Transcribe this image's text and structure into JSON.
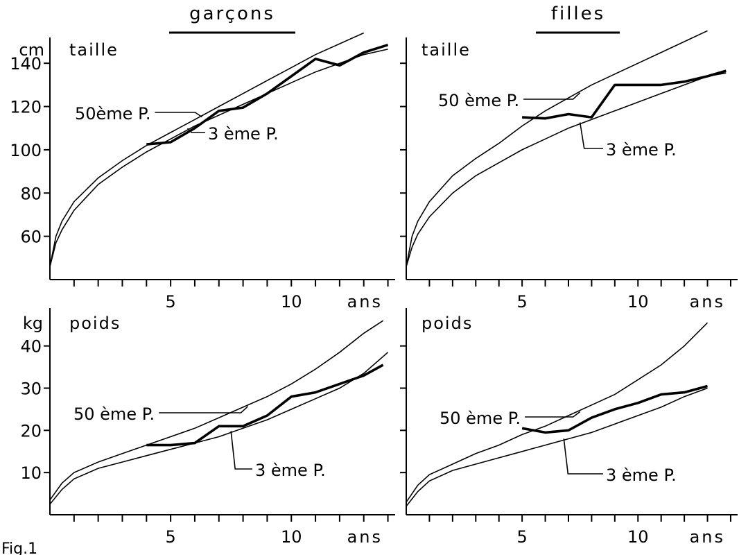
{
  "headers": {
    "boys": "garçons",
    "girls": "filles"
  },
  "fig_caption": "Fig.1",
  "chart_data": [
    {
      "type": "line",
      "id": "boys-height",
      "panel_label": "taille",
      "ylabel": "cm",
      "xlabel": "ans",
      "xlim": [
        0,
        14.3
      ],
      "ylim": [
        40,
        150
      ],
      "xticks": [
        1,
        2,
        3,
        4,
        5,
        6,
        7,
        8,
        9,
        10,
        11,
        12,
        13,
        14
      ],
      "xtick_labels": [
        {
          "x": 5,
          "label": "5"
        },
        {
          "x": 10,
          "label": "10"
        }
      ],
      "yticks": [
        60,
        80,
        100,
        120,
        140
      ],
      "ytick_labels": [
        "60",
        "80",
        "100",
        "120",
        "140"
      ],
      "series": [
        {
          "name": "50ème P.",
          "role": "p50",
          "x": [
            0,
            0.25,
            0.5,
            1,
            2,
            3,
            4,
            5,
            6,
            7,
            8,
            9,
            10,
            11,
            12,
            13
          ],
          "y": [
            46,
            60,
            67,
            76,
            87,
            95,
            102,
            108,
            114,
            120,
            126,
            132,
            138,
            144,
            149,
            154
          ]
        },
        {
          "name": "3 ème P.",
          "role": "p3",
          "x": [
            0,
            0.25,
            0.5,
            1,
            2,
            3,
            4,
            5,
            6,
            7,
            8,
            9,
            10,
            11,
            12,
            13,
            14
          ],
          "y": [
            46,
            57,
            63,
            72,
            84,
            92,
            99,
            105,
            111,
            116,
            121,
            126,
            131,
            136,
            140,
            144,
            146.5
          ]
        },
        {
          "role": "child",
          "x": [
            4,
            5,
            6,
            7,
            8,
            9,
            10,
            11,
            12,
            13,
            14
          ],
          "y": [
            102.5,
            103.5,
            110,
            118,
            119.5,
            126,
            134,
            142,
            139,
            145,
            148.5
          ]
        }
      ],
      "annotations": [
        {
          "text": "50ème P.",
          "target": "p50"
        },
        {
          "text": "3 ème P.",
          "target": "p3"
        }
      ]
    },
    {
      "type": "line",
      "id": "girls-height",
      "panel_label": "taille",
      "ylabel": "",
      "xlabel": "ans",
      "xlim": [
        0,
        14.3
      ],
      "ylim": [
        40,
        150
      ],
      "xticks": [
        1,
        2,
        3,
        4,
        5,
        6,
        7,
        8,
        9,
        10,
        11,
        12,
        13,
        14
      ],
      "xtick_labels": [
        {
          "x": 5,
          "label": "5"
        },
        {
          "x": 10,
          "label": "10"
        }
      ],
      "yticks": [
        60,
        80,
        100,
        120,
        140
      ],
      "ytick_labels": [],
      "series": [
        {
          "name": "50ème P.",
          "role": "p50",
          "x": [
            0,
            0.25,
            0.5,
            1,
            2,
            3,
            4,
            5,
            6,
            7,
            8,
            9,
            10,
            11,
            12,
            13
          ],
          "y": [
            46,
            60,
            67,
            76,
            88,
            96,
            103,
            111,
            118,
            124,
            130,
            135,
            140,
            145,
            150,
            155
          ]
        },
        {
          "name": "3 ème P.",
          "role": "p3",
          "x": [
            0,
            0.25,
            0.5,
            1,
            2,
            3,
            4,
            5,
            6,
            7,
            8,
            9,
            10,
            11,
            12,
            13,
            13.8
          ],
          "y": [
            46,
            55,
            61,
            69,
            80,
            88,
            94,
            100,
            105,
            110,
            114,
            118,
            122,
            126,
            130,
            134,
            135.5
          ]
        },
        {
          "role": "child",
          "x": [
            5,
            6,
            7,
            8,
            9,
            10,
            11,
            12,
            13,
            13.8
          ],
          "y": [
            115,
            114.5,
            116.5,
            115,
            130,
            130,
            130,
            131.5,
            134,
            136.5
          ]
        }
      ],
      "annotations": [
        {
          "text": "50 ème P.",
          "target": "p50"
        },
        {
          "text": "3 ème P.",
          "target": "p3"
        }
      ]
    },
    {
      "type": "line",
      "id": "boys-weight",
      "panel_label": "poids",
      "ylabel": "kg",
      "xlabel": "ans",
      "xlim": [
        0,
        14.3
      ],
      "ylim": [
        0,
        48
      ],
      "xticks": [
        1,
        2,
        3,
        4,
        5,
        6,
        7,
        8,
        9,
        10,
        11,
        12,
        13,
        14
      ],
      "xtick_labels": [
        {
          "x": 5,
          "label": "5"
        },
        {
          "x": 10,
          "label": "10"
        }
      ],
      "yticks": [
        10,
        20,
        30,
        40
      ],
      "ytick_labels": [
        "10",
        "20",
        "30",
        "40"
      ],
      "series": [
        {
          "name": "50ème P.",
          "role": "p50",
          "x": [
            0,
            0.5,
            1,
            2,
            3,
            4,
            5,
            6,
            7,
            8,
            9,
            10,
            11,
            12,
            13,
            13.8
          ],
          "y": [
            3.5,
            7.5,
            10,
            12.5,
            14.5,
            16.5,
            18.5,
            20.5,
            23,
            25.5,
            28,
            31,
            34.5,
            38.5,
            43,
            46
          ]
        },
        {
          "name": "3 ème P.",
          "role": "p3",
          "x": [
            0,
            0.5,
            1,
            2,
            3,
            4,
            5,
            6,
            7,
            8,
            9,
            10,
            11,
            12,
            13,
            14
          ],
          "y": [
            2.5,
            6,
            8.5,
            11,
            12.5,
            14,
            15.5,
            17,
            18.5,
            20.5,
            22.5,
            25,
            27.5,
            30,
            33.5,
            38.5
          ]
        },
        {
          "role": "child",
          "x": [
            4,
            5,
            6,
            7,
            8,
            9,
            10,
            11,
            12,
            13,
            13.8
          ],
          "y": [
            16.5,
            16.5,
            17,
            21,
            21,
            23.5,
            28,
            29,
            31,
            33,
            35.5
          ]
        }
      ],
      "annotations": [
        {
          "text": "50 ème P.",
          "target": "p50"
        },
        {
          "text": "3 ème P.",
          "target": "p3"
        }
      ]
    },
    {
      "type": "line",
      "id": "girls-weight",
      "panel_label": "poids",
      "ylabel": "",
      "xlabel": "ans",
      "xlim": [
        0,
        14.3
      ],
      "ylim": [
        0,
        48
      ],
      "xticks": [
        1,
        2,
        3,
        4,
        5,
        6,
        7,
        8,
        9,
        10,
        11,
        12,
        13,
        14
      ],
      "xtick_labels": [
        {
          "x": 5,
          "label": "5"
        },
        {
          "x": 10,
          "label": "10"
        }
      ],
      "yticks": [
        10,
        20,
        30,
        40
      ],
      "ytick_labels": [],
      "series": [
        {
          "name": "50ème P.",
          "role": "p50",
          "x": [
            0,
            0.5,
            1,
            2,
            3,
            4,
            5,
            6,
            7,
            8,
            9,
            10,
            11,
            12,
            13
          ],
          "y": [
            3,
            7,
            9.5,
            12,
            14.5,
            16.5,
            19,
            21,
            23.5,
            26,
            28.5,
            32,
            35.5,
            40,
            45.5
          ]
        },
        {
          "name": "3 ème P.",
          "role": "p3",
          "x": [
            0,
            0.5,
            1,
            2,
            3,
            4,
            5,
            6,
            7,
            8,
            9,
            10,
            11,
            12,
            13
          ],
          "y": [
            2,
            5.5,
            8,
            10.5,
            12,
            13.5,
            15,
            16.5,
            18,
            19.5,
            21.5,
            23.5,
            25.5,
            28,
            30
          ]
        },
        {
          "role": "child",
          "x": [
            5,
            6,
            7,
            8,
            9,
            10,
            11,
            12,
            13
          ],
          "y": [
            20.5,
            19.5,
            20,
            23,
            25,
            26.5,
            28.5,
            29,
            30.5
          ]
        }
      ],
      "annotations": [
        {
          "text": "50 ème P.",
          "target": "p50"
        },
        {
          "text": "3 ème P.",
          "target": "p3"
        }
      ]
    }
  ]
}
